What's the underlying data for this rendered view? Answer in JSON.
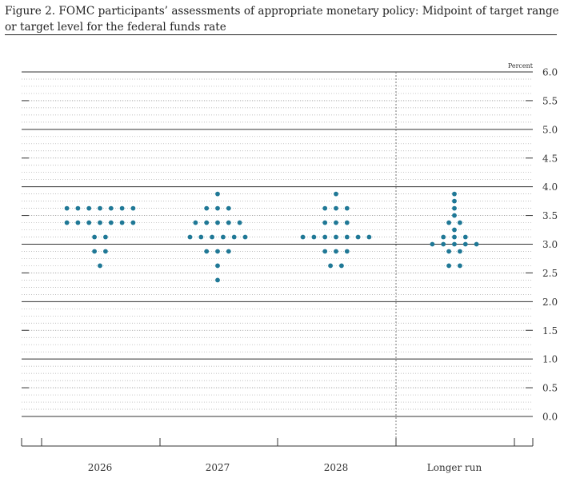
{
  "figure": {
    "title_line1": "Figure 2. FOMC participants’ assessments of appropriate monetary policy: Midpoint of target range",
    "title_line2": "or target level for the federal funds rate"
  },
  "chart_data": {
    "type": "scatter",
    "title": "FOMC participants’ assessments of appropriate monetary policy: Midpoint of target range or target level for the federal funds rate",
    "ylabel": "Percent",
    "ylim": [
      0,
      6
    ],
    "yticks": [
      "0.0",
      "0.5",
      "1.0",
      "1.5",
      "2.0",
      "2.5",
      "3.0",
      "3.5",
      "4.0",
      "4.5",
      "5.0",
      "5.5",
      "6.0"
    ],
    "categories": [
      "2026",
      "2027",
      "2028",
      "Longer run"
    ],
    "grid": "dotted at 0.125 intervals, solid at whole percents",
    "dot_color": "#1f7896",
    "series": [
      {
        "category": "2026",
        "points": [
          {
            "y": 3.625,
            "count": 7
          },
          {
            "y": 3.375,
            "count": 7
          },
          {
            "y": 3.125,
            "count": 2
          },
          {
            "y": 2.875,
            "count": 2
          },
          {
            "y": 2.625,
            "count": 1
          }
        ]
      },
      {
        "category": "2027",
        "points": [
          {
            "y": 3.875,
            "count": 1
          },
          {
            "y": 3.625,
            "count": 3
          },
          {
            "y": 3.375,
            "count": 5
          },
          {
            "y": 3.125,
            "count": 6
          },
          {
            "y": 2.875,
            "count": 3
          },
          {
            "y": 2.625,
            "count": 1
          },
          {
            "y": 2.375,
            "count": 1
          }
        ]
      },
      {
        "category": "2028",
        "points": [
          {
            "y": 3.875,
            "count": 1
          },
          {
            "y": 3.625,
            "count": 3
          },
          {
            "y": 3.375,
            "count": 3
          },
          {
            "y": 3.125,
            "count": 7
          },
          {
            "y": 2.875,
            "count": 3
          },
          {
            "y": 2.625,
            "count": 2
          }
        ]
      },
      {
        "category": "Longer run",
        "points": [
          {
            "y": 3.875,
            "count": 1
          },
          {
            "y": 3.75,
            "count": 1
          },
          {
            "y": 3.625,
            "count": 1
          },
          {
            "y": 3.5,
            "count": 1
          },
          {
            "y": 3.375,
            "count": 2
          },
          {
            "y": 3.25,
            "count": 1
          },
          {
            "y": 3.125,
            "count": 3
          },
          {
            "y": 3.0,
            "count": 5
          },
          {
            "y": 2.875,
            "count": 2
          },
          {
            "y": 2.625,
            "count": 2
          }
        ]
      }
    ]
  }
}
